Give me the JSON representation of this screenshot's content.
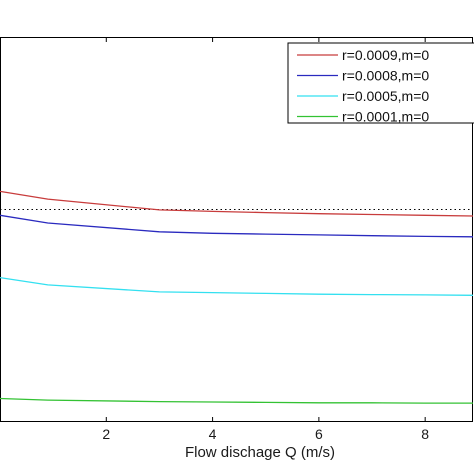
{
  "chart_data": {
    "type": "line",
    "xlabel": "Flow dischage Q (m/s)",
    "xlim": [
      0,
      8.9
    ],
    "xticks": [
      2,
      4,
      6,
      8
    ],
    "ylim": [
      0,
      1
    ],
    "reference_line_y": 0.552,
    "series": [
      {
        "name": "r=0.0009,m=0",
        "color": "#c83c3c",
        "x": [
          0,
          0.9,
          3,
          4,
          5,
          6,
          7,
          8,
          8.9
        ],
        "y": [
          0.599,
          0.579,
          0.551,
          0.547,
          0.544,
          0.541,
          0.539,
          0.537,
          0.535
        ]
      },
      {
        "name": "r=0.0008,m=0",
        "color": "#2a2abf",
        "x": [
          0,
          0.9,
          3,
          4,
          5,
          6,
          7,
          8,
          8.9
        ],
        "y": [
          0.537,
          0.517,
          0.494,
          0.49,
          0.488,
          0.486,
          0.484,
          0.482,
          0.481
        ]
      },
      {
        "name": "r=0.0005,m=0",
        "color": "#33e0f0",
        "x": [
          0,
          0.9,
          3,
          4,
          5,
          6,
          7,
          8,
          8.9
        ],
        "y": [
          0.375,
          0.356,
          0.338,
          0.336,
          0.334,
          0.332,
          0.331,
          0.33,
          0.329
        ]
      },
      {
        "name": "r=0.0001,m=0",
        "color": "#33c233",
        "x": [
          0,
          0.9,
          3,
          4,
          5,
          6,
          7,
          8,
          8.9
        ],
        "y": [
          0.061,
          0.057,
          0.053,
          0.052,
          0.051,
          0.05,
          0.05,
          0.049,
          0.049
        ]
      }
    ],
    "legend_position": "top-right",
    "grid": false
  }
}
